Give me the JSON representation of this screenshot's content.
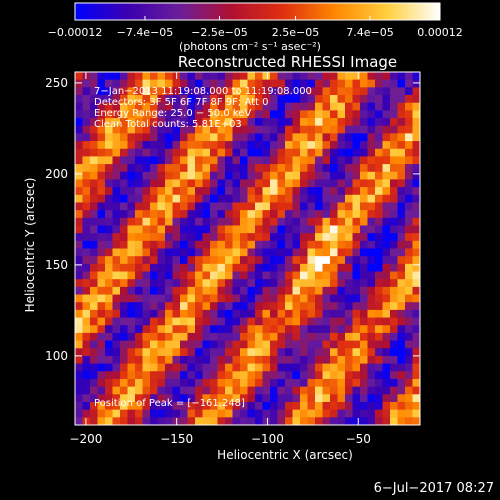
{
  "chart_data": {
    "type": "heatmap",
    "title": "Reconstructed RHESSI Image",
    "xlabel": "Heliocentric X (arcsec)",
    "ylabel": "Heliocentric Y (arcsec)",
    "xlim": [
      -206,
      -16
    ],
    "ylim": [
      62,
      256
    ],
    "xticks": [
      {
        "value": -200,
        "label": "−200"
      },
      {
        "value": -150,
        "label": "−150"
      },
      {
        "value": -100,
        "label": "−100"
      },
      {
        "value": -50,
        "label": "−50"
      }
    ],
    "yticks": [
      {
        "value": 100,
        "label": "100"
      },
      {
        "value": 150,
        "label": "150"
      },
      {
        "value": 200,
        "label": "200"
      },
      {
        "value": 250,
        "label": "250"
      }
    ],
    "colorbar": {
      "min": -0.00012,
      "max": 0.00012,
      "ticks": [
        {
          "value": -0.00012,
          "label": "−0.00012"
        },
        {
          "value": -7.4e-05,
          "label": "−7.4e−05"
        },
        {
          "value": -2.5e-05,
          "label": "−2.5e−05"
        },
        {
          "value": 2.5e-05,
          "label": "2.5e−05"
        },
        {
          "value": 7.4e-05,
          "label": "7.4e−05"
        },
        {
          "value": 0.00012,
          "label": "0.00012"
        }
      ],
      "unit": "(photons cm⁻² s⁻¹ asec⁻²)",
      "stops": [
        "#0000ff",
        "#3a00b0",
        "#6a1e9a",
        "#b01030",
        "#e03010",
        "#ff8800",
        "#ffd040",
        "#ffffff"
      ]
    },
    "annotations": [
      "7−Jan−2013 11:19:08.000 to 11:19:08.000",
      "Detectors: 3F 5F 6F 7F 8F 9F; Att 0",
      "Energy Range: 25.0 − 50.0 keV",
      "Clean    Total counts: 5.81E+03"
    ],
    "peak_text": "Position of Peak = [−161,248]",
    "peak": {
      "x": -161,
      "y": 248
    },
    "grid": false
  },
  "footer": {
    "timestamp": "6−Jul−2017 08:27"
  }
}
